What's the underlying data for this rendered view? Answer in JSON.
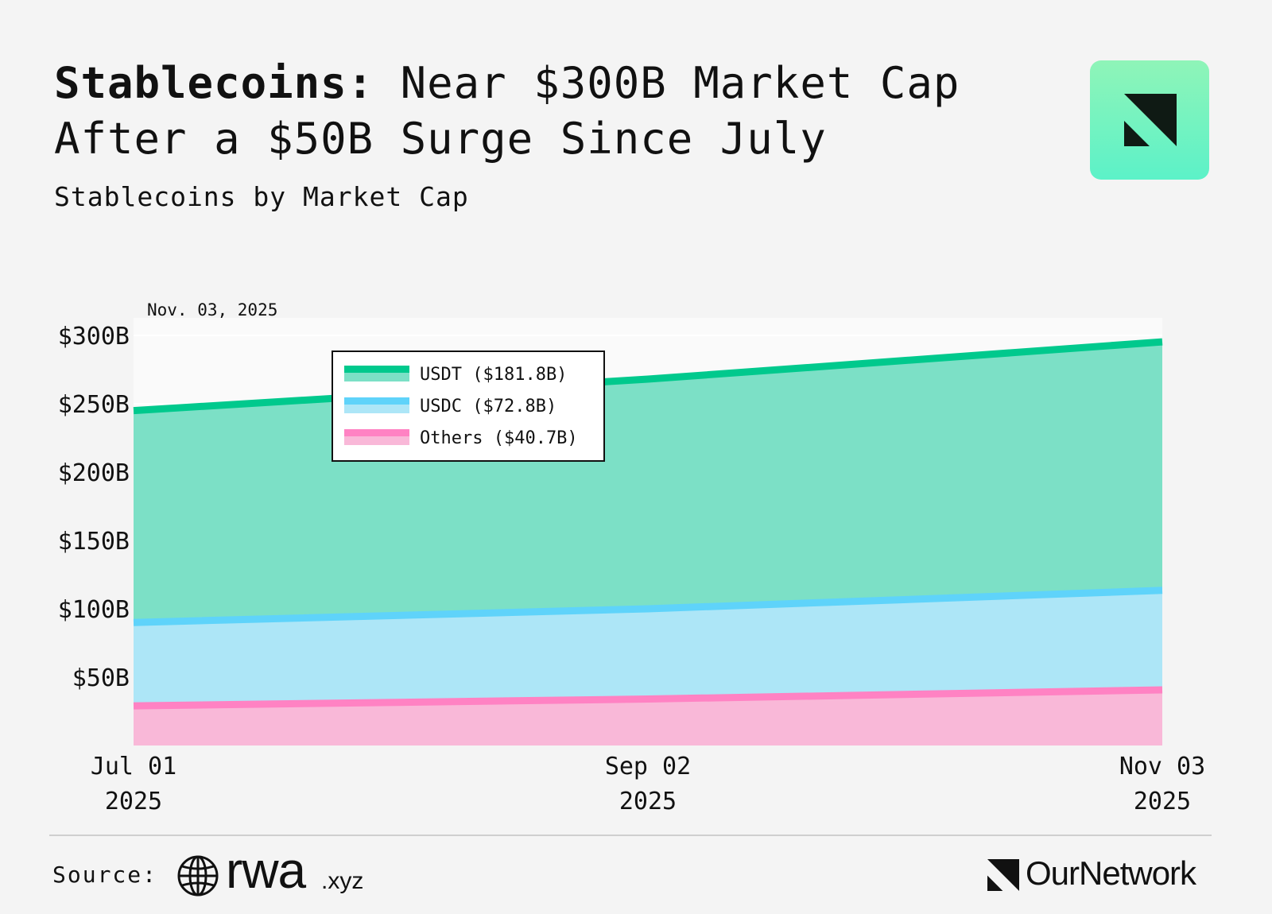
{
  "header": {
    "title_bold": "Stablecoins:",
    "title_rest": " Near $300B Market Cap After a $50B Surge Since July",
    "subtitle": "Stablecoins by Market Cap"
  },
  "footer": {
    "source_label": "Source:",
    "source_brand": "rwa",
    "source_brand_tld": ".xyz",
    "publisher": "OurNetwork"
  },
  "colors": {
    "usdt": "#00c98d",
    "usdt_fill": "#7ce0c6",
    "usdc": "#5fd3fa",
    "usdc_fill": "#ade6f7",
    "others": "#ff82c3",
    "others_fill": "#f9b8d8",
    "background": "#f4f4f4"
  },
  "chart_data": {
    "type": "area",
    "stacked": true,
    "title": "",
    "xlabel": "",
    "ylabel": "",
    "date_label": "Nov. 03, 2025",
    "x": [
      "Jul 01 2025",
      "Sep 02 2025",
      "Nov 03 2025"
    ],
    "x_ticks": [
      {
        "line1": "Jul 01",
        "line2": "2025"
      },
      {
        "line1": "Sep 02",
        "line2": "2025"
      },
      {
        "line1": "Nov 03",
        "line2": "2025"
      }
    ],
    "ylim": [
      0,
      300
    ],
    "y_ticks": [
      50,
      100,
      150,
      200,
      250,
      300
    ],
    "y_tick_labels": [
      "$50B",
      "$100B",
      "$150B",
      "$200B",
      "$250B",
      "$300B"
    ],
    "grid": true,
    "legend_position": "top-left",
    "series": [
      {
        "name": "Others",
        "legend_label": "Others ($40.7B)",
        "values": [
          29,
          34,
          40.7
        ],
        "color_key": "others"
      },
      {
        "name": "USDC",
        "legend_label": "USDC ($72.8B)",
        "values": [
          61,
          66,
          72.8
        ],
        "color_key": "usdc"
      },
      {
        "name": "USDT",
        "legend_label": "USDT ($181.8B)",
        "values": [
          155,
          168,
          181.8
        ],
        "color_key": "usdt"
      }
    ],
    "legend_order": [
      "USDT",
      "USDC",
      "Others"
    ]
  }
}
